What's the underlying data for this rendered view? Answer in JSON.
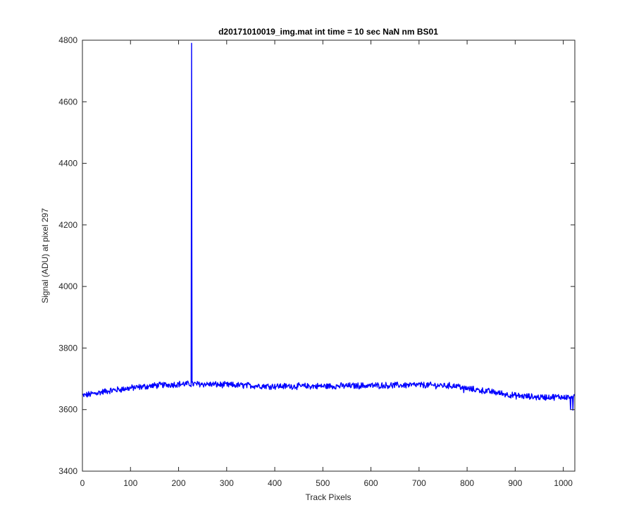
{
  "chart_data": {
    "type": "line",
    "title": "d20171010019_img.mat int time = 10 sec  NaN nm BS01",
    "xlabel": "Track Pixels",
    "ylabel": "Signal (ADU) at pixel 297",
    "xlim": [
      0,
      1024
    ],
    "ylim": [
      3400,
      4800
    ],
    "xticks": [
      0,
      100,
      200,
      300,
      400,
      500,
      600,
      700,
      800,
      900,
      1000
    ],
    "yticks": [
      3400,
      3600,
      3800,
      4000,
      4200,
      4400,
      4600,
      4800
    ],
    "grid": false,
    "series": [
      {
        "color": "#0000ff",
        "trend": [
          [
            0,
            3645
          ],
          [
            50,
            3660
          ],
          [
            100,
            3670
          ],
          [
            150,
            3678
          ],
          [
            200,
            3683
          ],
          [
            250,
            3683
          ],
          [
            300,
            3680
          ],
          [
            400,
            3676
          ],
          [
            500,
            3676
          ],
          [
            600,
            3678
          ],
          [
            700,
            3680
          ],
          [
            780,
            3677
          ],
          [
            800,
            3668
          ],
          [
            850,
            3658
          ],
          [
            900,
            3645
          ],
          [
            950,
            3640
          ],
          [
            1024,
            3642
          ]
        ],
        "noise_amplitude": 9,
        "spike": {
          "x": 227,
          "y": 4790
        },
        "features": [
          {
            "x": 793,
            "y": 3655
          },
          {
            "x": 1015,
            "y": 3600
          },
          {
            "x": 1020,
            "y": 3598
          }
        ]
      }
    ]
  }
}
